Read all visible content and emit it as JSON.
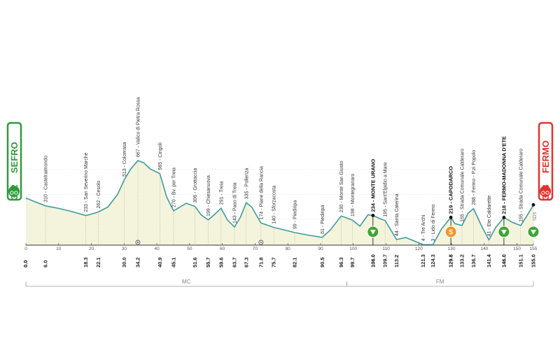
{
  "chart_data": {
    "type": "area",
    "title": "",
    "xlabel": "",
    "ylabel": "",
    "xlim": [
      0,
      155
    ],
    "ylim": [
      0,
      700
    ],
    "elevation_ticks": [
      "200",
      "400",
      "600"
    ],
    "km_ticks": [
      "0",
      "10",
      "20",
      "30",
      "40",
      "50",
      "60",
      "70",
      "80",
      "90",
      "100",
      "110",
      "120",
      "130",
      "140",
      "150",
      "155"
    ],
    "profile": [
      [
        0,
        372
      ],
      [
        2,
        350
      ],
      [
        6,
        310
      ],
      [
        10,
        290
      ],
      [
        14,
        265
      ],
      [
        18.3,
        233
      ],
      [
        20,
        245
      ],
      [
        22.1,
        262
      ],
      [
        25,
        300
      ],
      [
        28,
        400
      ],
      [
        30,
        513
      ],
      [
        32,
        600
      ],
      [
        34.2,
        667
      ],
      [
        36,
        650
      ],
      [
        38,
        600
      ],
      [
        40.9,
        565
      ],
      [
        43,
        380
      ],
      [
        45.1,
        270
      ],
      [
        47,
        300
      ],
      [
        49,
        330
      ],
      [
        51.6,
        306
      ],
      [
        53.5,
        240
      ],
      [
        55.7,
        199
      ],
      [
        57.5,
        240
      ],
      [
        59.6,
        291
      ],
      [
        61.5,
        200
      ],
      [
        63.7,
        143
      ],
      [
        65.5,
        220
      ],
      [
        67.3,
        335
      ],
      [
        69,
        300
      ],
      [
        71.8,
        174
      ],
      [
        75.7,
        140
      ],
      [
        82.1,
        99
      ],
      [
        86,
        80
      ],
      [
        90.5,
        61
      ],
      [
        93,
        120
      ],
      [
        96.3,
        230
      ],
      [
        99.7,
        198
      ],
      [
        102,
        150
      ],
      [
        104.5,
        240
      ],
      [
        106,
        234
      ],
      [
        108,
        210
      ],
      [
        109.7,
        195
      ],
      [
        113.2,
        44
      ],
      [
        116,
        60
      ],
      [
        121.3,
        4
      ],
      [
        124.3,
        3
      ],
      [
        127,
        130
      ],
      [
        129.8,
        219
      ],
      [
        131,
        170
      ],
      [
        133.2,
        155
      ],
      [
        135,
        250
      ],
      [
        136.7,
        288
      ],
      [
        139,
        160
      ],
      [
        141.4,
        41
      ],
      [
        143.5,
        140
      ],
      [
        146,
        218
      ],
      [
        148.5,
        180
      ],
      [
        151.1,
        155
      ],
      [
        153,
        230
      ],
      [
        155,
        318
      ]
    ],
    "start": {
      "elevation": "372",
      "name": "SEFRO"
    },
    "finish": {
      "elevation": "318",
      "name": "FERMO"
    },
    "points": [
      {
        "km": 6.0,
        "km_label": "6.0",
        "elev": 310,
        "label": "310 - Castelraimondo",
        "bold": false,
        "marker": "none"
      },
      {
        "km": 18.3,
        "km_label": "18.3",
        "elev": 233,
        "label": "233 - San Severino Marche",
        "bold": false,
        "marker": "none"
      },
      {
        "km": 22.1,
        "km_label": "22.1",
        "elev": 262,
        "label": "262 - Cesolo",
        "bold": false,
        "marker": "none"
      },
      {
        "km": 30.0,
        "km_label": "30.0",
        "elev": 513,
        "label": "513 - Colcerasa",
        "bold": false,
        "marker": "none"
      },
      {
        "km": 34.2,
        "km_label": "34.2",
        "elev": 667,
        "label": "667 - Valico di Pietra Rossa",
        "bold": false,
        "marker": "none"
      },
      {
        "km": 40.9,
        "km_label": "40.9",
        "elev": 565,
        "label": "565 - Cingoli",
        "bold": false,
        "marker": "none"
      },
      {
        "km": 45.1,
        "km_label": "45.1",
        "elev": 270,
        "label": "270 - Bv. per Treia",
        "bold": false,
        "marker": "none"
      },
      {
        "km": 51.6,
        "km_label": "51.6",
        "elev": 306,
        "label": "306 - Grottaccia",
        "bold": false,
        "marker": "none"
      },
      {
        "km": 55.7,
        "km_label": "55.7",
        "elev": 199,
        "label": "199 - Chiesanuova",
        "bold": false,
        "marker": "none"
      },
      {
        "km": 59.6,
        "km_label": "59.6",
        "elev": 291,
        "label": "291 - Treia",
        "bold": false,
        "marker": "none"
      },
      {
        "km": 63.7,
        "km_label": "63.7",
        "elev": 143,
        "label": "143 - Paso di Treia",
        "bold": false,
        "marker": "none"
      },
      {
        "km": 67.3,
        "km_label": "67.3",
        "elev": 335,
        "label": "335 - Pollenza",
        "bold": false,
        "marker": "none"
      },
      {
        "km": 71.8,
        "km_label": "71.8",
        "elev": 174,
        "label": "174 - Piane della Rancia",
        "bold": false,
        "marker": "none"
      },
      {
        "km": 75.7,
        "km_label": "75.7",
        "elev": 140,
        "label": "140 - Sforzacosta",
        "bold": false,
        "marker": "none"
      },
      {
        "km": 82.1,
        "km_label": "82.1",
        "elev": 99,
        "label": "99 - Piediripa",
        "bold": false,
        "marker": "none"
      },
      {
        "km": 90.5,
        "km_label": "90.5",
        "elev": 61,
        "label": "61 - Piediripa",
        "bold": false,
        "marker": "none"
      },
      {
        "km": 96.3,
        "km_label": "96.3",
        "elev": 230,
        "label": "230 - Monte San Giusto",
        "bold": false,
        "marker": "none"
      },
      {
        "km": 99.7,
        "km_label": "99.7",
        "elev": 198,
        "label": "198 - Montegranaro",
        "bold": false,
        "marker": "none"
      },
      {
        "km": 106.0,
        "km_label": "106.0",
        "elev": 234,
        "label": "234 - MONTE URANO",
        "bold": true,
        "marker": "kom"
      },
      {
        "km": 109.7,
        "km_label": "109.7",
        "elev": 195,
        "label": "195 - Sant'Elpidio a Mare",
        "bold": false,
        "marker": "none"
      },
      {
        "km": 113.2,
        "km_label": "113.2",
        "elev": 44,
        "label": "44 - Santa Caterina",
        "bold": false,
        "marker": "none"
      },
      {
        "km": 121.3,
        "km_label": "121.3",
        "elev": 4,
        "label": "4 - Tre Archi",
        "bold": false,
        "marker": "none"
      },
      {
        "km": 124.3,
        "km_label": "124.3",
        "elev": 3,
        "label": "3 - Lido di Fermo",
        "bold": false,
        "marker": "none"
      },
      {
        "km": 129.8,
        "km_label": "129.8",
        "elev": 219,
        "label": "219 - CAPODARCO",
        "bold": true,
        "marker": "sprint"
      },
      {
        "km": 133.2,
        "km_label": "133.2",
        "elev": 155,
        "label": "155 - Strada Comunale Calderaro",
        "bold": false,
        "marker": "none"
      },
      {
        "km": 136.7,
        "km_label": "136.7",
        "elev": 288,
        "label": "288 - Fermo - P.zi Popolo",
        "bold": false,
        "marker": "none"
      },
      {
        "km": 141.4,
        "km_label": "141.4",
        "elev": 41,
        "label": "41 - Ete Caldarette",
        "bold": false,
        "marker": "none"
      },
      {
        "km": 146.0,
        "km_label": "146.0",
        "elev": 218,
        "label": "218 - FERMO-MADONNA D'ETE",
        "bold": true,
        "marker": "kom"
      },
      {
        "km": 151.1,
        "km_label": "151.1",
        "elev": 155,
        "label": "155 - Strada Comunale Calderaro",
        "bold": false,
        "marker": "none"
      },
      {
        "km": 155.0,
        "km_label": "155.0",
        "elev": 318,
        "label": "",
        "bold": false,
        "marker": "kom"
      }
    ],
    "start_km_label": "0.0",
    "provinces": [
      {
        "name": "MC",
        "from": 0,
        "to": 98
      },
      {
        "name": "FM",
        "from": 98,
        "to": 155
      }
    ],
    "sprint_letter": "S",
    "finish_tag": "SDS",
    "colors": {
      "profile_line": "#3e9aa0",
      "profile_fill": "#f4f4dc",
      "start": "#2d9b3a",
      "finish": "#e0332e",
      "kom": "#3fa535",
      "sprint": "#f39325"
    }
  }
}
